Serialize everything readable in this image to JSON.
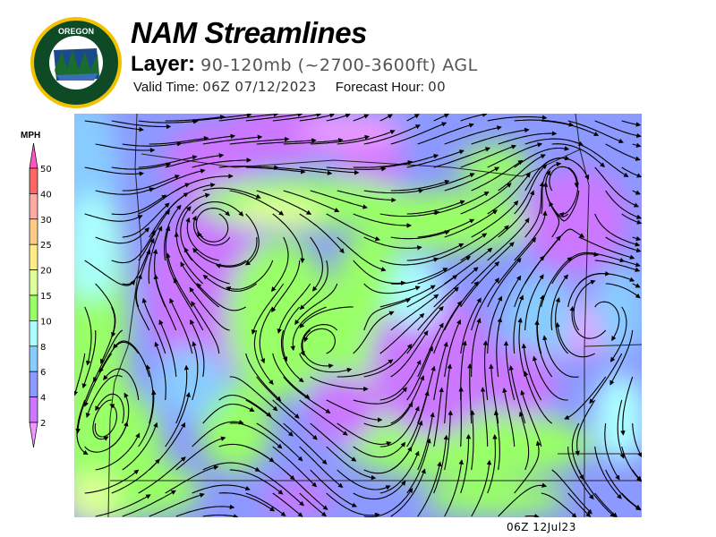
{
  "logo": {
    "top_text": "OREGON",
    "bottom_text": "DEPARTMENT OF FORESTRY"
  },
  "header": {
    "title": "NAM Streamlines",
    "layer_label": "Layer:",
    "layer_value": "90-120mb (~2700-3600ft) AGL",
    "valid_time_label": "Valid Time:",
    "valid_time_value": "06Z 07/12/2023",
    "forecast_hour_label": "Forecast Hour:",
    "forecast_hour_value": "00"
  },
  "colorbar": {
    "unit": "MPH",
    "levels": [
      "50",
      "40",
      "30",
      "25",
      "20",
      "15",
      "10",
      "8",
      "6",
      "4",
      "2"
    ],
    "colors": [
      "#ff6666",
      "#ffaaa2",
      "#ffcc88",
      "#ffee88",
      "#ddff99",
      "#99ff66",
      "#aaffff",
      "#88ccff",
      "#8c99ff",
      "#cc77ff"
    ],
    "over_color": "#ff55c0",
    "under_color": "#ee99ff"
  },
  "map": {
    "field": "wind speed streamlines",
    "region": "Oregon / Pacific Northwest"
  },
  "footer": {
    "stamp": "06Z 12Jul23"
  }
}
